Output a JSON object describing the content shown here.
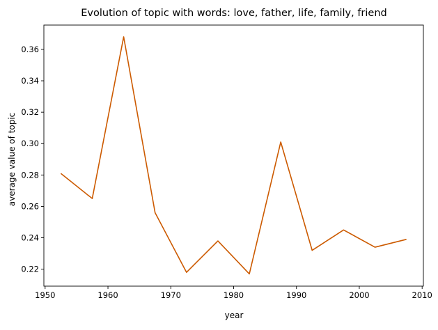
{
  "chart_data": {
    "type": "line",
    "title": "Evolution of topic with words: love, father, life, family, friend",
    "xlabel": "year",
    "ylabel": "average value of topic",
    "xlim": [
      1949.8,
      2010.2
    ],
    "ylim": [
      0.2092,
      0.3755
    ],
    "x_ticks": [
      1950,
      1960,
      1970,
      1980,
      1990,
      2000,
      2010
    ],
    "y_ticks": [
      0.22,
      0.24,
      0.26,
      0.28,
      0.3,
      0.32,
      0.34,
      0.36
    ],
    "x_tick_labels": [
      "1950",
      "1960",
      "1970",
      "1980",
      "1990",
      "2000",
      "2010"
    ],
    "y_tick_labels": [
      "0.22",
      "0.24",
      "0.26",
      "0.28",
      "0.30",
      "0.32",
      "0.34",
      "0.36"
    ],
    "grid": false,
    "series": [
      {
        "color": "#cc5a00",
        "x": [
          1952.5,
          1957.5,
          1962.5,
          1967.5,
          1972.5,
          1977.5,
          1982.5,
          1987.5,
          1992.5,
          1997.5,
          2002.5,
          2007.5
        ],
        "y": [
          0.281,
          0.265,
          0.368,
          0.256,
          0.218,
          0.238,
          0.217,
          0.301,
          0.232,
          0.245,
          0.234,
          0.239
        ]
      }
    ]
  }
}
